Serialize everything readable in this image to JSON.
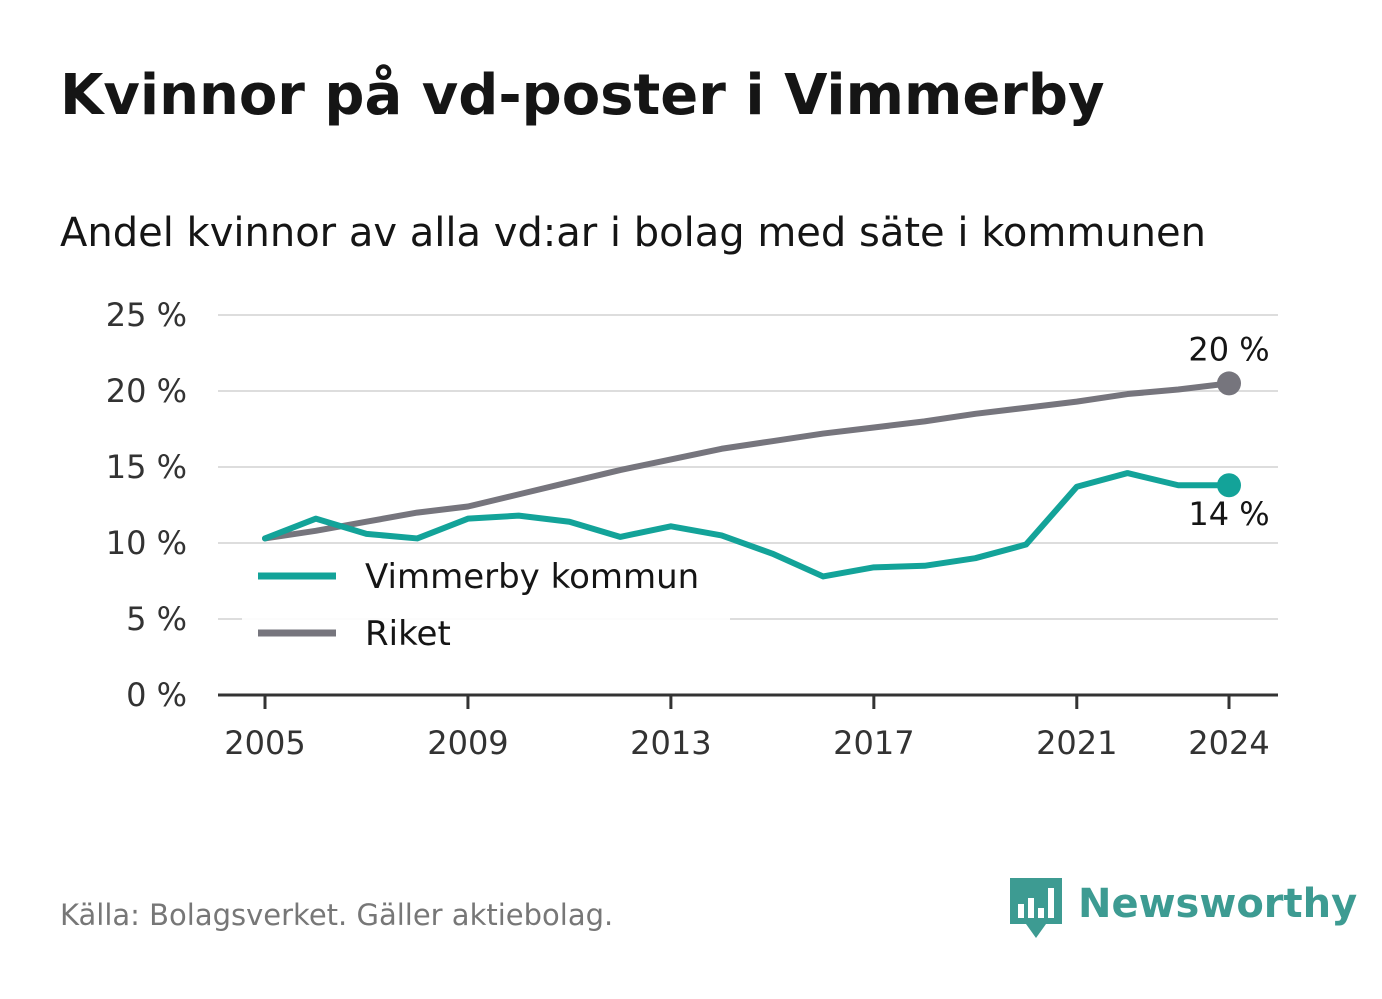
{
  "title": "Kvinnor på vd-poster i Vimmerby",
  "subtitle": "Andel kvinnor av alla vd:ar i bolag med säte i kommunen",
  "source": "Källa: Bolagsverket. Gäller aktiebolag.",
  "brand": "Newsworthy",
  "colors": {
    "vimmerby": "#13a399",
    "riket": "#76757d",
    "grid": "#dddddd",
    "axis": "#333333",
    "brand": "#3d9b92"
  },
  "chart_data": {
    "type": "line",
    "title": "Kvinnor på vd-poster i Vimmerby",
    "subtitle": "Andel kvinnor av alla vd:ar i bolag med säte i kommunen",
    "x": [
      2005,
      2006,
      2007,
      2008,
      2009,
      2010,
      2011,
      2012,
      2013,
      2014,
      2015,
      2016,
      2017,
      2018,
      2019,
      2020,
      2021,
      2022,
      2023,
      2024
    ],
    "x_ticks": [
      "2005",
      "2009",
      "2013",
      "2017",
      "2021",
      "2024"
    ],
    "y_ticks": [
      "0 %",
      "5 %",
      "10 %",
      "15 %",
      "20 %",
      "25 %"
    ],
    "ylim": [
      0,
      25
    ],
    "grid": true,
    "legend_position": "lower-left",
    "series": [
      {
        "name": "Vimmerby kommun",
        "values": [
          10.3,
          11.6,
          10.6,
          10.3,
          11.6,
          11.8,
          11.4,
          10.4,
          11.1,
          10.5,
          9.3,
          7.8,
          8.4,
          8.5,
          9.0,
          9.9,
          13.7,
          14.6,
          13.8,
          13.8
        ],
        "end_label": "14 %"
      },
      {
        "name": "Riket",
        "values": [
          10.3,
          10.8,
          11.4,
          12.0,
          12.4,
          13.2,
          14.0,
          14.8,
          15.5,
          16.2,
          16.7,
          17.2,
          17.6,
          18.0,
          18.5,
          18.9,
          19.3,
          19.8,
          20.1,
          20.5
        ],
        "end_label": "20 %"
      }
    ]
  }
}
